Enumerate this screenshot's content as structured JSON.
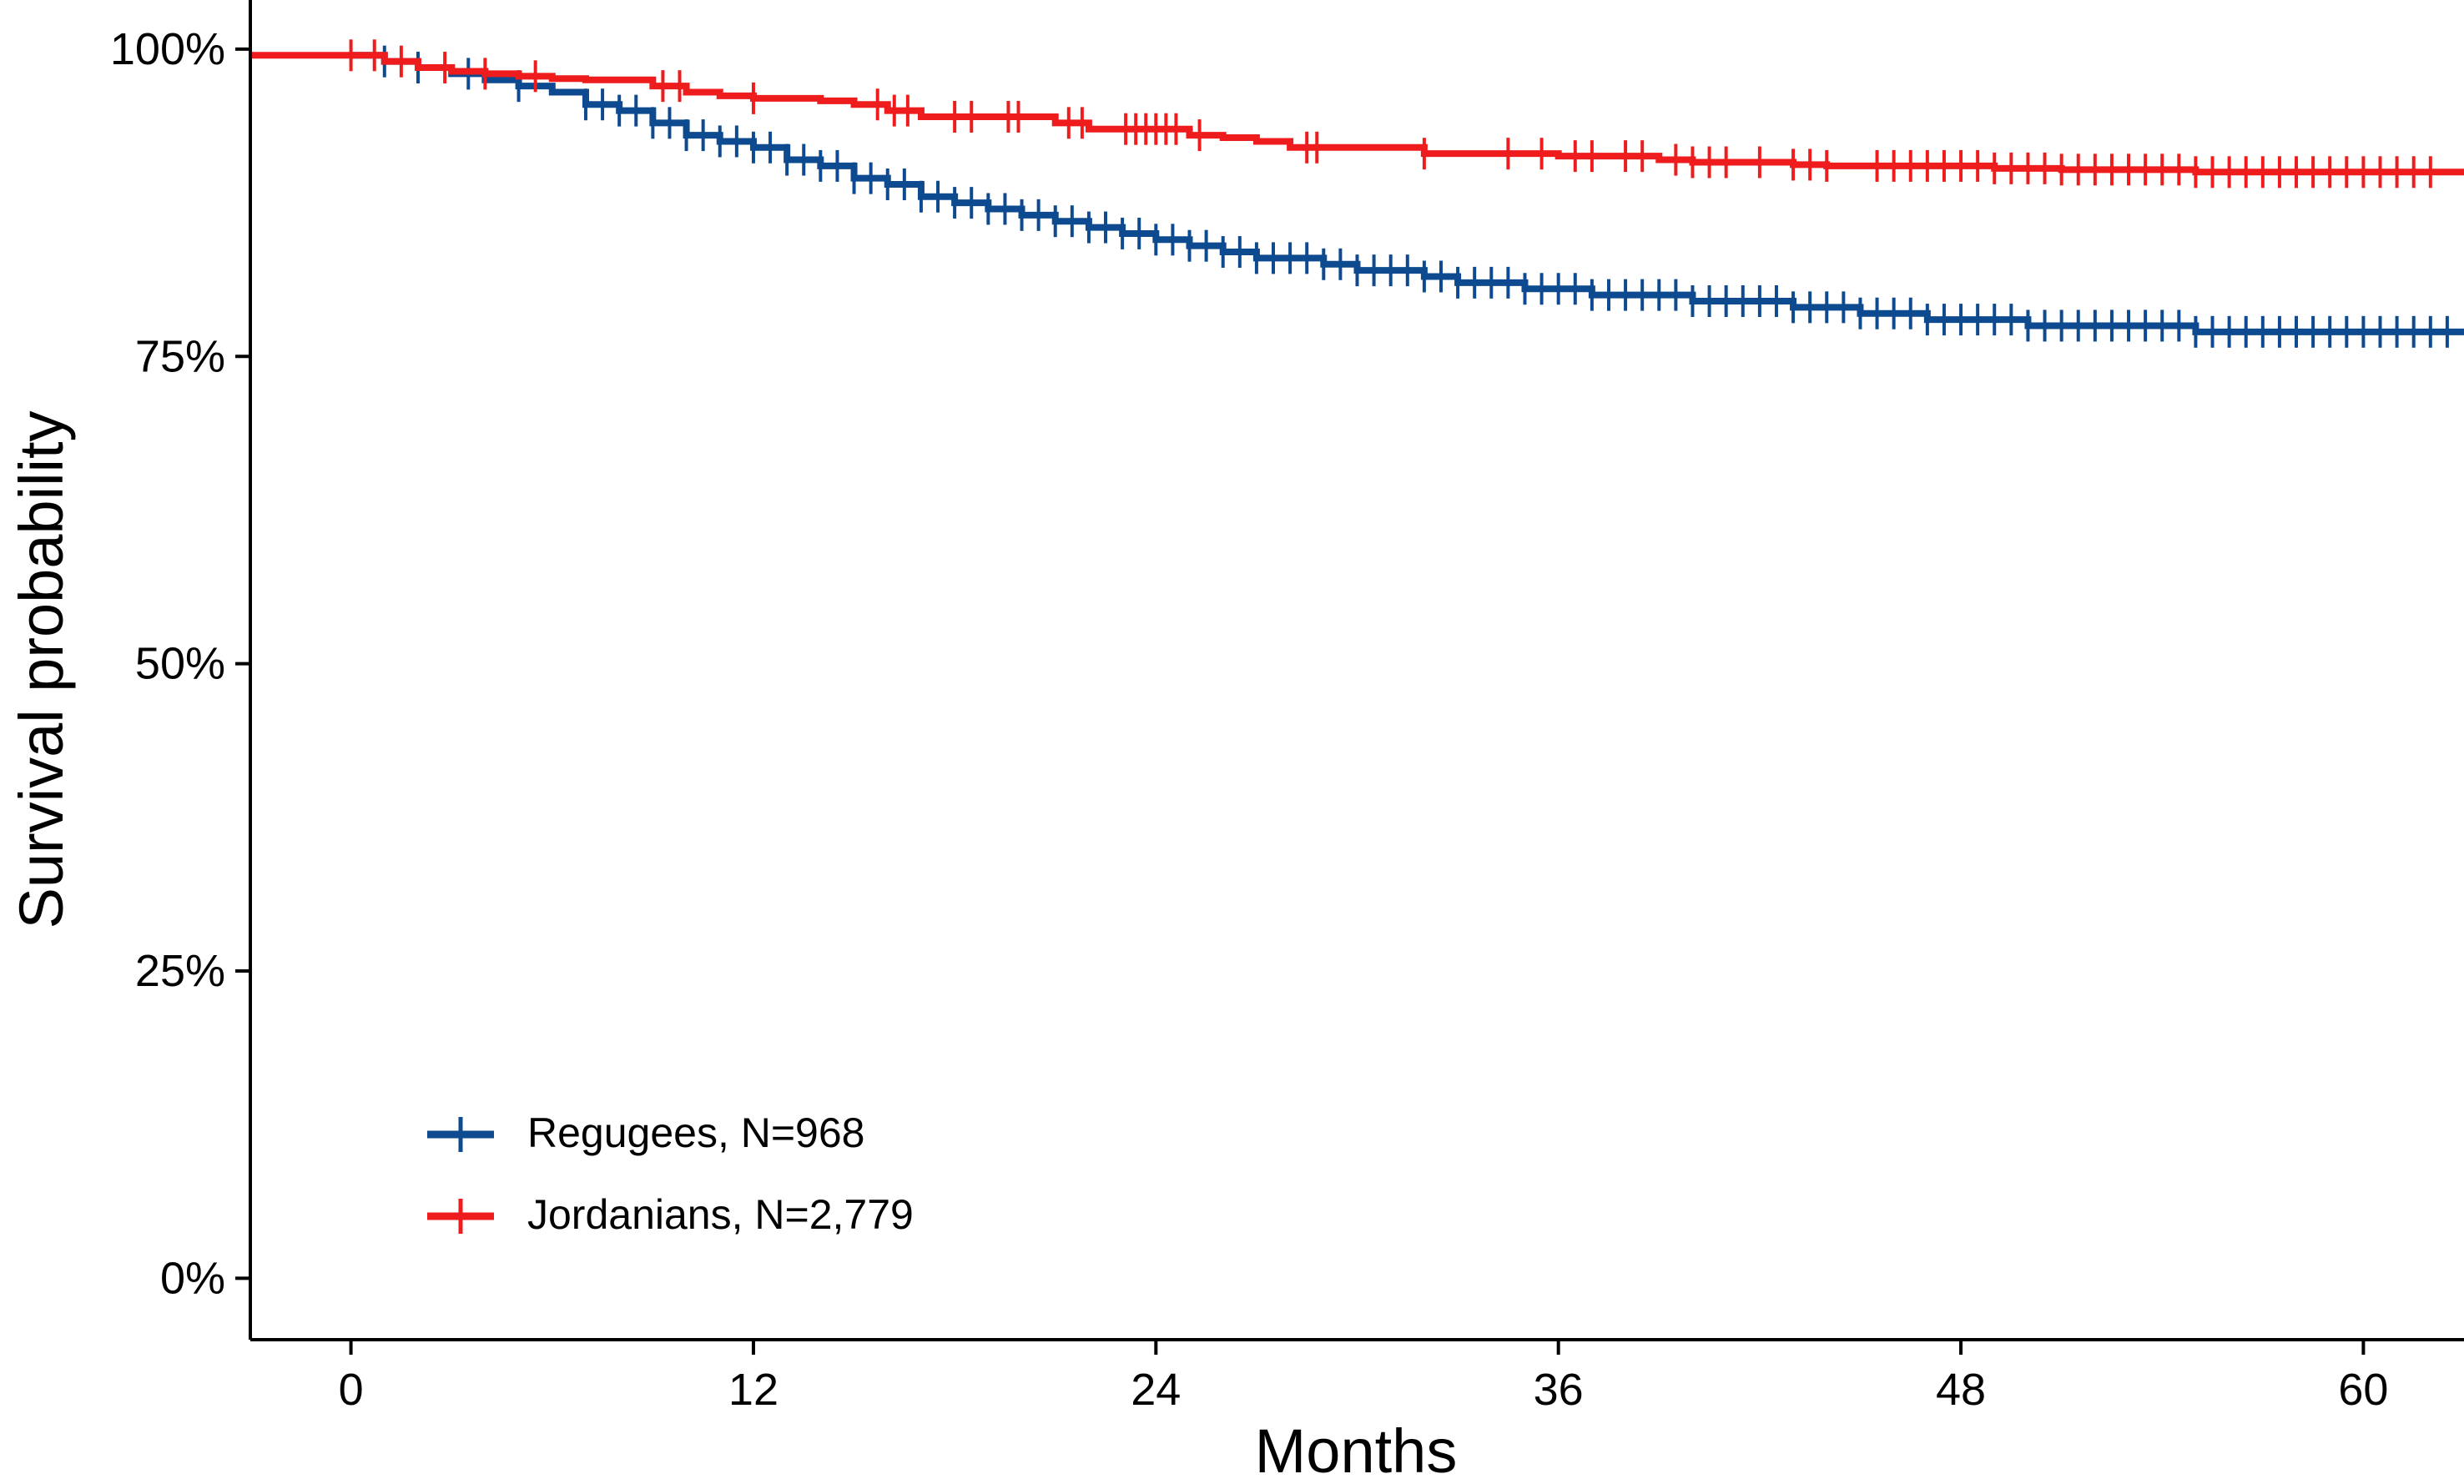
{
  "chart_data": {
    "type": "line",
    "subtype": "kaplan-meier",
    "title": "",
    "xlabel": "Months",
    "ylabel": "Survival probability",
    "xlim": [
      -3,
      63
    ],
    "ylim": [
      -0.05,
      1.04
    ],
    "xticks": [
      0,
      12,
      24,
      36,
      48,
      60
    ],
    "xtick_labels": [
      "0",
      "12",
      "24",
      "36",
      "48",
      "60"
    ],
    "yticks": [
      0,
      0.25,
      0.5,
      0.75,
      1.0
    ],
    "ytick_labels": [
      "0%",
      "25%",
      "50%",
      "75%",
      "100%"
    ],
    "grid": false,
    "legend_position": "bottom-left",
    "series": [
      {
        "name": "Regugees, N=968",
        "color": "#0D4A8F",
        "points": [
          [
            0,
            0.995
          ],
          [
            1,
            0.99
          ],
          [
            2,
            0.985
          ],
          [
            3,
            0.98
          ],
          [
            4,
            0.975
          ],
          [
            5,
            0.97
          ],
          [
            6,
            0.965
          ],
          [
            7,
            0.955
          ],
          [
            8,
            0.95
          ],
          [
            9,
            0.94
          ],
          [
            10,
            0.93
          ],
          [
            11,
            0.925
          ],
          [
            12,
            0.92
          ],
          [
            13,
            0.91
          ],
          [
            14,
            0.905
          ],
          [
            15,
            0.895
          ],
          [
            16,
            0.89
          ],
          [
            17,
            0.88
          ],
          [
            18,
            0.875
          ],
          [
            19,
            0.87
          ],
          [
            20,
            0.865
          ],
          [
            21,
            0.86
          ],
          [
            22,
            0.855
          ],
          [
            23,
            0.85
          ],
          [
            24,
            0.845
          ],
          [
            25,
            0.84
          ],
          [
            26,
            0.835
          ],
          [
            27,
            0.83
          ],
          [
            28,
            0.83
          ],
          [
            29,
            0.825
          ],
          [
            30,
            0.82
          ],
          [
            31,
            0.82
          ],
          [
            32,
            0.815
          ],
          [
            33,
            0.81
          ],
          [
            34,
            0.81
          ],
          [
            35,
            0.805
          ],
          [
            36,
            0.805
          ],
          [
            37,
            0.8
          ],
          [
            38,
            0.8
          ],
          [
            39,
            0.8
          ],
          [
            40,
            0.795
          ],
          [
            41,
            0.795
          ],
          [
            42,
            0.795
          ],
          [
            43,
            0.79
          ],
          [
            44,
            0.79
          ],
          [
            45,
            0.785
          ],
          [
            46,
            0.785
          ],
          [
            47,
            0.78
          ],
          [
            48,
            0.78
          ],
          [
            49,
            0.78
          ],
          [
            50,
            0.775
          ],
          [
            51,
            0.775
          ],
          [
            52,
            0.775
          ],
          [
            53,
            0.775
          ],
          [
            54,
            0.775
          ],
          [
            55,
            0.77
          ],
          [
            56,
            0.77
          ],
          [
            57,
            0.77
          ],
          [
            58,
            0.77
          ],
          [
            59,
            0.77
          ],
          [
            60,
            0.77
          ],
          [
            61,
            0.77
          ],
          [
            62,
            0.77
          ],
          [
            63,
            0.77
          ]
        ],
        "censor_x": [
          1,
          2,
          3.5,
          5,
          7,
          7.5,
          8,
          8.5,
          9,
          9.5,
          10,
          10.5,
          11,
          11.5,
          12,
          12.5,
          13,
          13.5,
          14,
          14.5,
          15,
          15.5,
          16,
          16.5,
          17,
          17.5,
          18,
          18.5,
          19,
          19.5,
          20,
          20.5,
          21,
          21.5,
          22,
          22.5,
          23,
          23.5,
          24,
          24.5,
          25,
          25.5,
          26,
          26.5,
          27,
          27.5,
          28,
          28.5,
          29,
          29.5,
          30,
          30.5,
          31,
          31.5,
          32,
          32.5,
          33,
          33.5,
          34,
          34.5,
          35,
          35.5,
          36,
          36.5,
          37,
          37.5,
          38,
          38.5,
          39,
          39.5,
          40,
          40.5,
          41,
          41.5,
          42,
          42.5,
          43,
          43.5,
          44,
          44.5,
          45,
          45.5,
          46,
          46.5,
          47,
          47.5,
          48,
          48.5,
          49,
          49.5,
          50,
          50.5,
          51,
          51.5,
          52,
          52.5,
          53,
          53.5,
          54,
          54.5,
          55,
          55.5,
          56,
          56.5,
          57,
          57.5,
          58,
          58.5,
          59,
          59.5,
          60,
          60.5,
          61,
          61.5,
          62,
          62.5
        ]
      },
      {
        "name": "Jordanians, N=2,779",
        "color": "#EE1C1C",
        "points": [
          [
            -3,
            0.995
          ],
          [
            0,
            0.995
          ],
          [
            1,
            0.99
          ],
          [
            2,
            0.985
          ],
          [
            3,
            0.982
          ],
          [
            4,
            0.98
          ],
          [
            5,
            0.978
          ],
          [
            6,
            0.976
          ],
          [
            7,
            0.975
          ],
          [
            8,
            0.975
          ],
          [
            9,
            0.97
          ],
          [
            10,
            0.965
          ],
          [
            11,
            0.962
          ],
          [
            12,
            0.96
          ],
          [
            13,
            0.96
          ],
          [
            14,
            0.958
          ],
          [
            15,
            0.955
          ],
          [
            16,
            0.95
          ],
          [
            17,
            0.945
          ],
          [
            18,
            0.945
          ],
          [
            19,
            0.945
          ],
          [
            20,
            0.945
          ],
          [
            21,
            0.94
          ],
          [
            22,
            0.935
          ],
          [
            23,
            0.935
          ],
          [
            24,
            0.935
          ],
          [
            25,
            0.93
          ],
          [
            26,
            0.928
          ],
          [
            27,
            0.925
          ],
          [
            28,
            0.92
          ],
          [
            29,
            0.92
          ],
          [
            30,
            0.92
          ],
          [
            31,
            0.92
          ],
          [
            32,
            0.915
          ],
          [
            33,
            0.915
          ],
          [
            34,
            0.915
          ],
          [
            35,
            0.915
          ],
          [
            36,
            0.913
          ],
          [
            37,
            0.913
          ],
          [
            38,
            0.913
          ],
          [
            39,
            0.91
          ],
          [
            40,
            0.908
          ],
          [
            41,
            0.908
          ],
          [
            42,
            0.908
          ],
          [
            43,
            0.906
          ],
          [
            44,
            0.905
          ],
          [
            45,
            0.905
          ],
          [
            46,
            0.905
          ],
          [
            47,
            0.905
          ],
          [
            48,
            0.905
          ],
          [
            49,
            0.903
          ],
          [
            50,
            0.903
          ],
          [
            51,
            0.902
          ],
          [
            52,
            0.902
          ],
          [
            53,
            0.902
          ],
          [
            54,
            0.902
          ],
          [
            55,
            0.9
          ],
          [
            56,
            0.9
          ],
          [
            57,
            0.9
          ],
          [
            58,
            0.9
          ],
          [
            59,
            0.9
          ],
          [
            60,
            0.9
          ],
          [
            61,
            0.9
          ],
          [
            62,
            0.9
          ],
          [
            63,
            0.9
          ]
        ],
        "censor_x": [
          0,
          0.7,
          1.5,
          2.8,
          4,
          5.5,
          9.3,
          9.8,
          12,
          15.7,
          16.2,
          16.6,
          18,
          18.5,
          19.6,
          19.9,
          21.4,
          21.8,
          23.1,
          23.4,
          23.7,
          24,
          24.3,
          24.6,
          25.3,
          28.5,
          28.8,
          32,
          34.5,
          35.5,
          36.5,
          37,
          38,
          38.5,
          39.5,
          40,
          40.5,
          41,
          42,
          43,
          43.5,
          44,
          45.5,
          46,
          46.5,
          47,
          47.5,
          48,
          48.5,
          49,
          49.5,
          50,
          50.5,
          51,
          51.5,
          52,
          52.5,
          53,
          53.5,
          54,
          54.5,
          55,
          55.5,
          56,
          56.5,
          57,
          57.5,
          58,
          58.5,
          59,
          59.5,
          60,
          60.5,
          61,
          61.5,
          62
        ]
      }
    ]
  }
}
